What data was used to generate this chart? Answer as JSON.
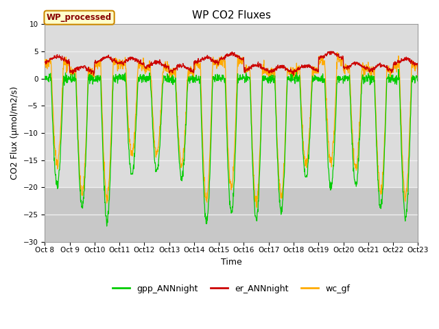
{
  "title": "WP CO2 Fluxes",
  "xlabel": "Time",
  "ylabel": "CO2 Flux (μmol/m2/s)",
  "ylim": [
    -30,
    10
  ],
  "yticks": [
    10,
    5,
    0,
    -5,
    -10,
    -15,
    -20,
    -25,
    -30
  ],
  "xtick_labels": [
    "Oct 8",
    "Oct 9",
    "Oct 10",
    "Oct 11",
    "Oct 12",
    "Oct 13",
    "Oct 14",
    "Oct 15",
    "Oct 16",
    "Oct 17",
    "Oct 18",
    "Oct 19",
    "Oct 20",
    "Oct 21",
    "Oct 22",
    "Oct 23"
  ],
  "n_days": 15,
  "color_gpp": "#00cc00",
  "color_er": "#cc0000",
  "color_wc": "#ffaa00",
  "wp_label": "WP_processed",
  "legend_labels": [
    "gpp_ANNnight",
    "er_ANNnight",
    "wc_gf"
  ],
  "bg_color": "#dcdcdc",
  "bg_color_bottom": "#c8c8c8",
  "grid_color": "#f0f0f0",
  "title_fontsize": 11,
  "label_fontsize": 9,
  "tick_fontsize": 7.5,
  "legend_fontsize": 9
}
